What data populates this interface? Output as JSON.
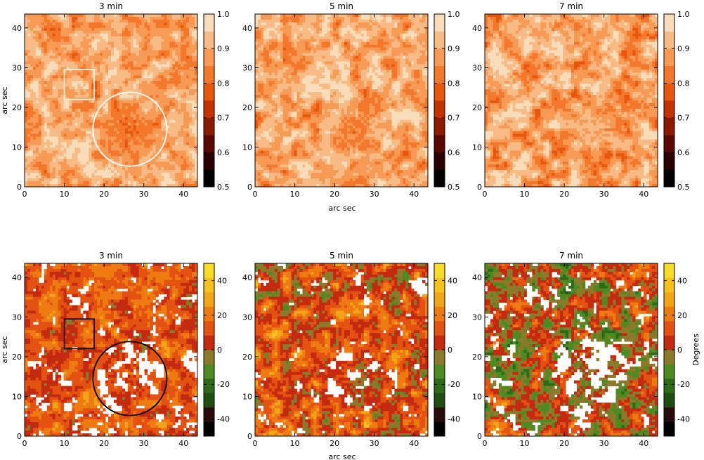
{
  "figure": {
    "shared_x_label": "arc sec",
    "y_label": "arc sec",
    "colorbar_label": "Degrees"
  },
  "chart_data": [
    {
      "type": "heatmap",
      "row": "top",
      "title": "3 min",
      "xlim": [
        0,
        43.5
      ],
      "ylim": [
        0,
        43.5
      ],
      "xticks": [
        "0",
        "10",
        "20",
        "30",
        "40"
      ],
      "yticks": [
        "0",
        "10",
        "20",
        "30",
        "40"
      ],
      "ylabel": "arc sec",
      "colormap": "hot",
      "colorbar": {
        "range": [
          0.5,
          1.0
        ],
        "ticks": [
          "0.5",
          "0.6",
          "0.7",
          "0.8",
          "0.9",
          "1.0"
        ]
      },
      "annotations": [
        {
          "kind": "square",
          "x": [
            10,
            17.5
          ],
          "y": [
            22,
            29.5
          ],
          "color": "#ffffff"
        },
        {
          "kind": "circle",
          "cx": 26.5,
          "cy": 14.5,
          "r": 9.3,
          "color": "#ffffff"
        }
      ],
      "texture": {
        "base": 0.78,
        "spot": {
          "cx": 26.5,
          "cy": 14.5,
          "r": 8.5,
          "level": 0.52
        },
        "amp": 0.28
      }
    },
    {
      "type": "heatmap",
      "row": "top",
      "title": "5 min",
      "xlim": [
        0,
        43.5
      ],
      "ylim": [
        0,
        43.5
      ],
      "xticks": [
        "0",
        "10",
        "20",
        "30",
        "40"
      ],
      "yticks": [
        "0",
        "10",
        "20",
        "30",
        "40"
      ],
      "xlabel": "arc sec",
      "colormap": "hot",
      "colorbar": {
        "range": [
          0.5,
          1.0
        ],
        "ticks": [
          "0.5",
          "0.6",
          "0.7",
          "0.8",
          "0.9",
          "1.0"
        ]
      },
      "annotations": [],
      "texture": {
        "base": 0.8,
        "spot": {
          "cx": 25,
          "cy": 14,
          "r": 9,
          "level": 0.58
        },
        "amp": 0.3
      }
    },
    {
      "type": "heatmap",
      "row": "top",
      "title": "7 min",
      "xlim": [
        0,
        43.5
      ],
      "ylim": [
        0,
        43.5
      ],
      "xticks": [
        "0",
        "10",
        "20",
        "30",
        "40"
      ],
      "yticks": [
        "0",
        "10",
        "20",
        "30",
        "40"
      ],
      "colormap": "hot",
      "colorbar": {
        "range": [
          0.5,
          1.0
        ],
        "ticks": [
          "0.5",
          "0.6",
          "0.7",
          "0.8",
          "0.9",
          "1.0"
        ]
      },
      "annotations": [],
      "texture": {
        "base": 0.78,
        "spot": {
          "cx": 26,
          "cy": 15,
          "r": 9,
          "level": 0.72
        },
        "amp": 0.32
      }
    },
    {
      "type": "heatmap",
      "row": "bottom",
      "title": "3 min",
      "xlim": [
        0,
        43.5
      ],
      "ylim": [
        0,
        43.5
      ],
      "xticks": [
        "0",
        "10",
        "20",
        "30",
        "40"
      ],
      "yticks": [
        "0",
        "10",
        "20",
        "30",
        "40"
      ],
      "ylabel": "arc sec",
      "colormap": "phase",
      "colorbar": {
        "range": [
          -50,
          50
        ],
        "ticks": [
          "-40",
          "-20",
          "0",
          "20",
          "40"
        ]
      },
      "annotations": [
        {
          "kind": "square",
          "x": [
            10,
            17.5
          ],
          "y": [
            22,
            29.5
          ],
          "color": "#000000"
        },
        {
          "kind": "circle",
          "cx": 26.5,
          "cy": 14.5,
          "r": 9.3,
          "color": "#000000"
        }
      ],
      "texture": {
        "base": 0.62,
        "spot": {
          "cx": 26.5,
          "cy": 14.5,
          "r": 8.5,
          "level": 0.5
        },
        "amp": 0.22,
        "blank": 0.3
      }
    },
    {
      "type": "heatmap",
      "row": "bottom",
      "title": "5 min",
      "xlim": [
        0,
        43.5
      ],
      "ylim": [
        0,
        43.5
      ],
      "xticks": [
        "0",
        "10",
        "20",
        "30",
        "40"
      ],
      "yticks": [
        "0",
        "10",
        "20",
        "30",
        "40"
      ],
      "xlabel": "arc sec",
      "colormap": "phase",
      "colorbar": {
        "range": [
          -50,
          50
        ],
        "ticks": [
          "-40",
          "-20",
          "0",
          "20",
          "40"
        ]
      },
      "annotations": [],
      "texture": {
        "base": 0.6,
        "spot": {
          "cx": 27,
          "cy": 15,
          "r": 9,
          "level": 0.42
        },
        "amp": 0.3,
        "blank": 0.3
      }
    },
    {
      "type": "heatmap",
      "row": "bottom",
      "title": "7 min",
      "xlim": [
        0,
        43.5
      ],
      "ylim": [
        0,
        43.5
      ],
      "xticks": [
        "0",
        "10",
        "20",
        "30",
        "40"
      ],
      "yticks": [
        "0",
        "10",
        "20",
        "30",
        "40"
      ],
      "colormap": "phase",
      "colorbar": {
        "range": [
          -50,
          50
        ],
        "ticks": [
          "-40",
          "-20",
          "0",
          "20",
          "40"
        ],
        "label": "Degrees"
      },
      "annotations": [],
      "texture": {
        "base": 0.52,
        "spot": {
          "cx": 27,
          "cy": 14,
          "r": 10,
          "level": 0.4
        },
        "amp": 0.34,
        "blank": 0.32
      }
    }
  ],
  "colormaps": {
    "hot": [
      "#000000",
      "#2a0000",
      "#5a0900",
      "#8a1a00",
      "#c23300",
      "#e8570e",
      "#f4782c",
      "#f79a55",
      "#f8bb85",
      "#f9dcb9"
    ],
    "phase": [
      "#000000",
      "#2a0a0a",
      "#1f4d12",
      "#2f6a1a",
      "#4d8a22",
      "#8a7a2a",
      "#c42a10",
      "#e45212",
      "#ee7a12",
      "#f3a418",
      "#f6c21e",
      "#f9dc2a"
    ]
  }
}
